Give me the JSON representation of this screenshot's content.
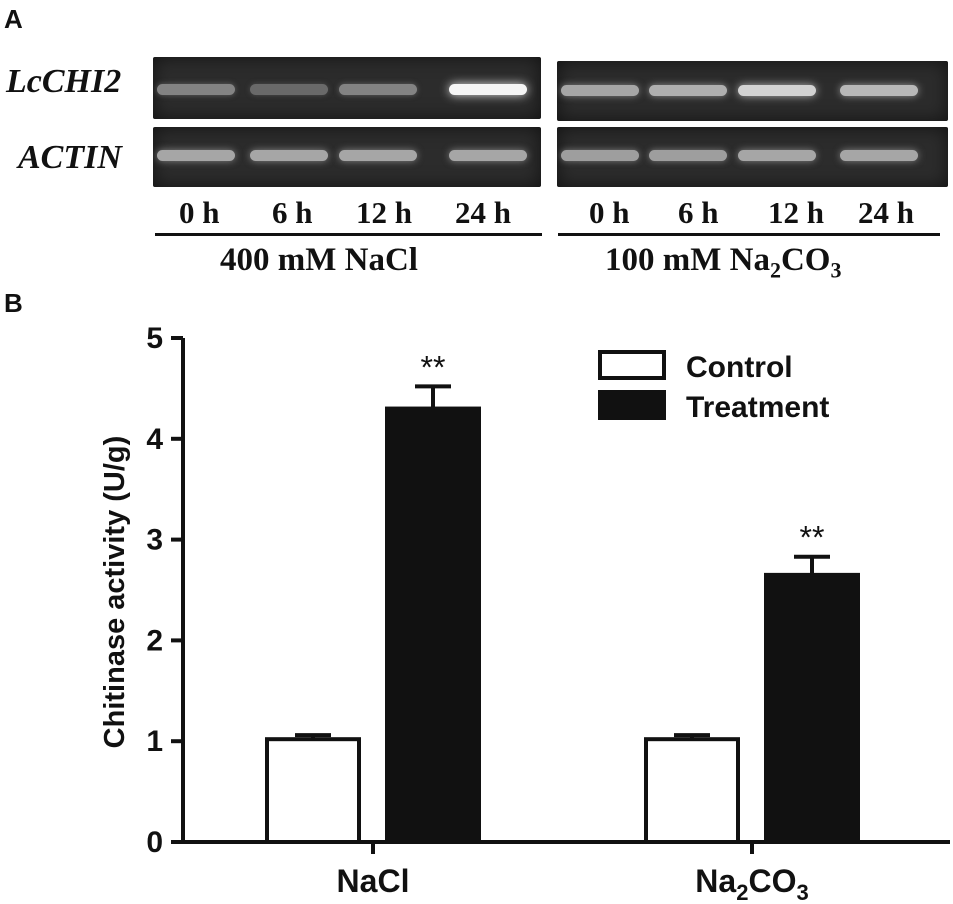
{
  "panel_a": {
    "letter": "A",
    "row_labels": [
      "LcCHI2",
      "ACTIN"
    ],
    "groups": [
      {
        "lanes": [
          "0 h",
          "6 h",
          "12 h",
          "24 h"
        ],
        "condition": "400 mM NaCl",
        "condition_parts": {
          "pre": "400 mM NaCl",
          "sub": "",
          "post": ""
        },
        "band_intensity": {
          "LcCHI2": [
            0.35,
            0.2,
            0.35,
            1.0
          ],
          "ACTIN": [
            0.55,
            0.55,
            0.55,
            0.55
          ]
        }
      },
      {
        "lanes": [
          "0 h",
          "6 h",
          "12 h",
          "24 h"
        ],
        "condition": "100 mM Na2CO3",
        "condition_parts": {
          "pre": "100 mM Na",
          "sub": "2",
          "post": "CO",
          "sub2": "3"
        },
        "band_intensity": {
          "LcCHI2": [
            0.55,
            0.6,
            0.8,
            0.65
          ],
          "ACTIN": [
            0.5,
            0.5,
            0.55,
            0.55
          ]
        }
      }
    ]
  },
  "panel_b": {
    "letter": "B",
    "colors": {
      "control": "#ffffff",
      "treatment": "#111111",
      "axis": "#111111"
    }
  },
  "chart_data": {
    "type": "bar",
    "categories": [
      "NaCl",
      "Na2CO3"
    ],
    "category_parts": [
      {
        "pre": "NaCl",
        "sub": "",
        "post": ""
      },
      {
        "pre": "Na",
        "sub": "2",
        "post": "CO",
        "sub2": "3"
      }
    ],
    "series": [
      {
        "name": "Control",
        "values": [
          1.02,
          1.02
        ],
        "errors": [
          0.04,
          0.04
        ]
      },
      {
        "name": "Treatment",
        "values": [
          4.3,
          2.65
        ],
        "errors": [
          0.22,
          0.18
        ]
      }
    ],
    "annotations": [
      "**",
      "**"
    ],
    "ylabel": "Chitinase activity (U/g)",
    "xlabel": "",
    "ylim": [
      0,
      5
    ],
    "yticks": [
      "0",
      "1",
      "2",
      "3",
      "4",
      "5"
    ],
    "legend_position": "top-right",
    "grid": false
  }
}
